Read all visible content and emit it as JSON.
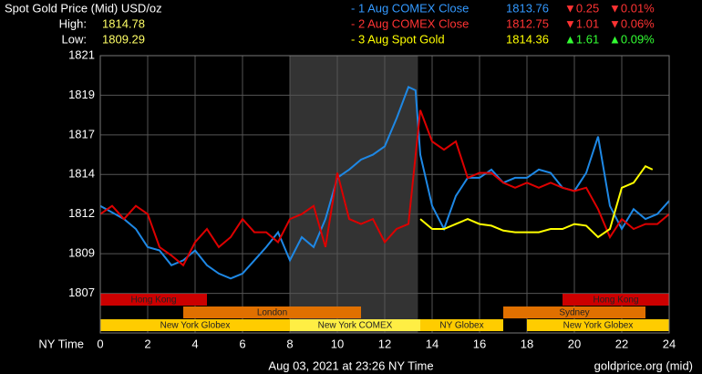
{
  "chart_data": {
    "type": "line",
    "title": "Spot Gold Price (Mid) USD/oz",
    "high_label": "High:",
    "high": "1814.78",
    "low_label": "Low:",
    "low": "1809.29",
    "xlabel": "NY Time",
    "footer_left": "Aug 03, 2021 at 23:26 NY Time",
    "footer_right": "goldprice.org (mid)",
    "xlim": [
      0,
      24
    ],
    "xticks": [
      0,
      2,
      4,
      6,
      8,
      10,
      12,
      14,
      16,
      18,
      20,
      22,
      24
    ],
    "ylim": [
      1804.6,
      1821.4
    ],
    "yticks": [
      {
        "value": 1821.4,
        "label": "1821"
      },
      {
        "value": 1819.0,
        "label": "1819"
      },
      {
        "value": 1816.6,
        "label": "1817"
      },
      {
        "value": 1814.2,
        "label": "1814"
      },
      {
        "value": 1811.8,
        "label": "1812"
      },
      {
        "value": 1809.4,
        "label": "1809"
      },
      {
        "value": 1807.0,
        "label": "1807"
      }
    ],
    "grid": true,
    "highlight": [
      8,
      13.4
    ],
    "series": [
      {
        "name": "- 1 Aug COMEX Close",
        "color": "#1e88e5",
        "label_color": "#3399ff",
        "close": "1813.76",
        "change": "▼0.25",
        "change_pct": "▼0.01%",
        "change_color": "#ff3333",
        "x": [
          0,
          0.5,
          1,
          1.5,
          2,
          2.5,
          3,
          3.5,
          4,
          4.5,
          5,
          5.5,
          6,
          6.5,
          7,
          7.5,
          8,
          8.5,
          9,
          9.5,
          10,
          10.5,
          11,
          11.5,
          12,
          12.5,
          13,
          13.3,
          13.5,
          14,
          14.5,
          15,
          15.5,
          16,
          16.5,
          17,
          17.5,
          18,
          18.5,
          19,
          19.5,
          20,
          20.5,
          21,
          21.5,
          22,
          22.5,
          23,
          23.5,
          24
        ],
        "values": [
          1812.3,
          1811.9,
          1811.5,
          1810.9,
          1809.8,
          1809.6,
          1808.7,
          1809.0,
          1809.6,
          1808.7,
          1808.2,
          1807.9,
          1808.2,
          1809.0,
          1809.8,
          1810.7,
          1809.0,
          1810.4,
          1809.8,
          1811.5,
          1814.0,
          1814.5,
          1815.1,
          1815.4,
          1815.9,
          1817.6,
          1819.5,
          1819.3,
          1815.4,
          1812.3,
          1810.9,
          1812.9,
          1814.0,
          1814.0,
          1814.5,
          1813.7,
          1814.0,
          1814.0,
          1814.5,
          1814.3,
          1813.4,
          1813.2,
          1814.3,
          1816.5,
          1812.3,
          1810.9,
          1812.1,
          1811.5,
          1811.8,
          1812.6
        ]
      },
      {
        "name": "- 2 Aug COMEX Close",
        "color": "#dd0000",
        "label_color": "#ff3333",
        "close": "1812.75",
        "change": "▼1.01",
        "change_pct": "▼0.06%",
        "change_color": "#ff3333",
        "x": [
          0,
          0.5,
          1,
          1.5,
          2,
          2.5,
          3,
          3.5,
          4,
          4.5,
          5,
          5.5,
          6,
          6.5,
          7,
          7.5,
          8,
          8.5,
          9,
          9.5,
          10,
          10.5,
          11,
          11.5,
          12,
          12.5,
          13,
          13.5,
          14,
          14.5,
          15,
          15.5,
          16,
          16.5,
          17,
          17.5,
          18,
          18.5,
          19,
          19.5,
          20,
          20.5,
          21,
          21.5,
          22,
          22.5,
          23,
          23.5,
          24
        ],
        "values": [
          1811.8,
          1812.3,
          1811.5,
          1812.3,
          1811.8,
          1809.8,
          1809.3,
          1808.7,
          1810.1,
          1810.9,
          1809.8,
          1810.4,
          1811.5,
          1810.7,
          1810.7,
          1810.1,
          1811.5,
          1811.8,
          1812.3,
          1809.8,
          1814.3,
          1811.5,
          1811.2,
          1811.5,
          1810.1,
          1810.9,
          1811.2,
          1818.1,
          1816.2,
          1815.7,
          1816.2,
          1814.0,
          1814.3,
          1814.3,
          1813.7,
          1813.4,
          1813.7,
          1813.4,
          1813.7,
          1813.4,
          1813.2,
          1813.4,
          1812.1,
          1810.4,
          1811.5,
          1810.9,
          1811.2,
          1811.2,
          1811.8
        ]
      },
      {
        "name": "- 3 Aug Spot Gold",
        "color": "#ffff00",
        "label_color": "#ffff00",
        "close": "1814.36",
        "change": "▲1.61",
        "change_pct": "▲0.09%",
        "change_color": "#33ff33",
        "x": [
          13.5,
          14,
          14.5,
          15,
          15.5,
          16,
          16.5,
          17,
          17.5,
          18,
          18.5,
          19,
          19.5,
          20,
          20.5,
          21,
          21.5,
          22,
          22.5,
          23,
          23.3
        ],
        "values": [
          1811.5,
          1810.9,
          1810.9,
          1811.2,
          1811.5,
          1811.2,
          1811.1,
          1810.8,
          1810.7,
          1810.7,
          1810.7,
          1810.9,
          1810.9,
          1811.2,
          1811.1,
          1810.4,
          1810.9,
          1813.4,
          1813.7,
          1814.7,
          1814.5
        ]
      }
    ],
    "session_rows": [
      [
        {
          "name": "Hong Kong",
          "start": 0,
          "end": 4.5,
          "color": "#cc0000"
        },
        {
          "name": "Hong Kong",
          "start": 19.5,
          "end": 24,
          "color": "#cc0000"
        }
      ],
      [
        {
          "name": "London",
          "start": 3.5,
          "end": 11,
          "color": "#e07000"
        },
        {
          "name": "Sydney",
          "start": 17,
          "end": 23,
          "color": "#e07000"
        }
      ],
      [
        {
          "name": "New York Globex",
          "start": 0,
          "end": 8,
          "color": "#ffcc00"
        },
        {
          "name": "New York COMEX",
          "start": 8,
          "end": 13.5,
          "color": "#ffee44"
        },
        {
          "name": "NY Globex",
          "start": 13.5,
          "end": 17,
          "color": "#ffcc00"
        },
        {
          "name": "New York Globex",
          "start": 18,
          "end": 24,
          "color": "#ffcc00"
        }
      ]
    ]
  }
}
